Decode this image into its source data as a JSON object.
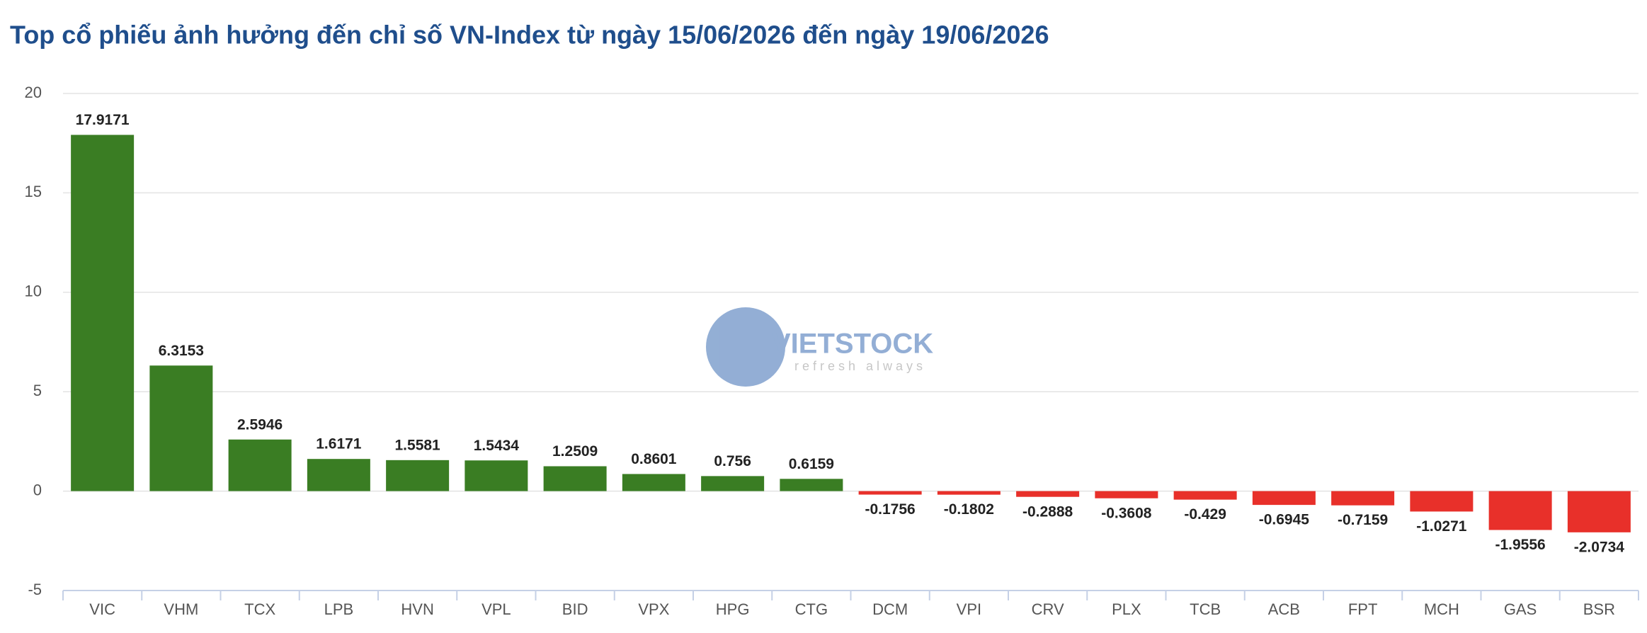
{
  "chart_data": {
    "type": "bar",
    "title": "Top cổ phiếu ảnh hưởng đến chỉ số VN-Index từ ngày 15/06/2026 đến ngày 19/06/2026",
    "watermark": {
      "brand": "VIETSTOCK",
      "tagline": "refresh always"
    },
    "categories": [
      "VIC",
      "VHM",
      "TCX",
      "LPB",
      "HVN",
      "VPL",
      "BID",
      "VPX",
      "HPG",
      "CTG",
      "DCM",
      "VPI",
      "CRV",
      "PLX",
      "TCB",
      "ACB",
      "FPT",
      "MCH",
      "GAS",
      "BSR"
    ],
    "values": [
      17.9171,
      6.3153,
      2.5946,
      1.6171,
      1.5581,
      1.5434,
      1.2509,
      0.8601,
      0.756,
      0.6159,
      -0.1756,
      -0.1802,
      -0.2888,
      -0.3608,
      -0.429,
      -0.6945,
      -0.7159,
      -1.0271,
      -1.9556,
      -2.0734
    ],
    "positive_color": "#3a7d23",
    "negative_color": "#e8302a",
    "ylim": [
      -5,
      20
    ],
    "yticks": [
      -5,
      0,
      5,
      10,
      15,
      20
    ],
    "grid": true
  }
}
